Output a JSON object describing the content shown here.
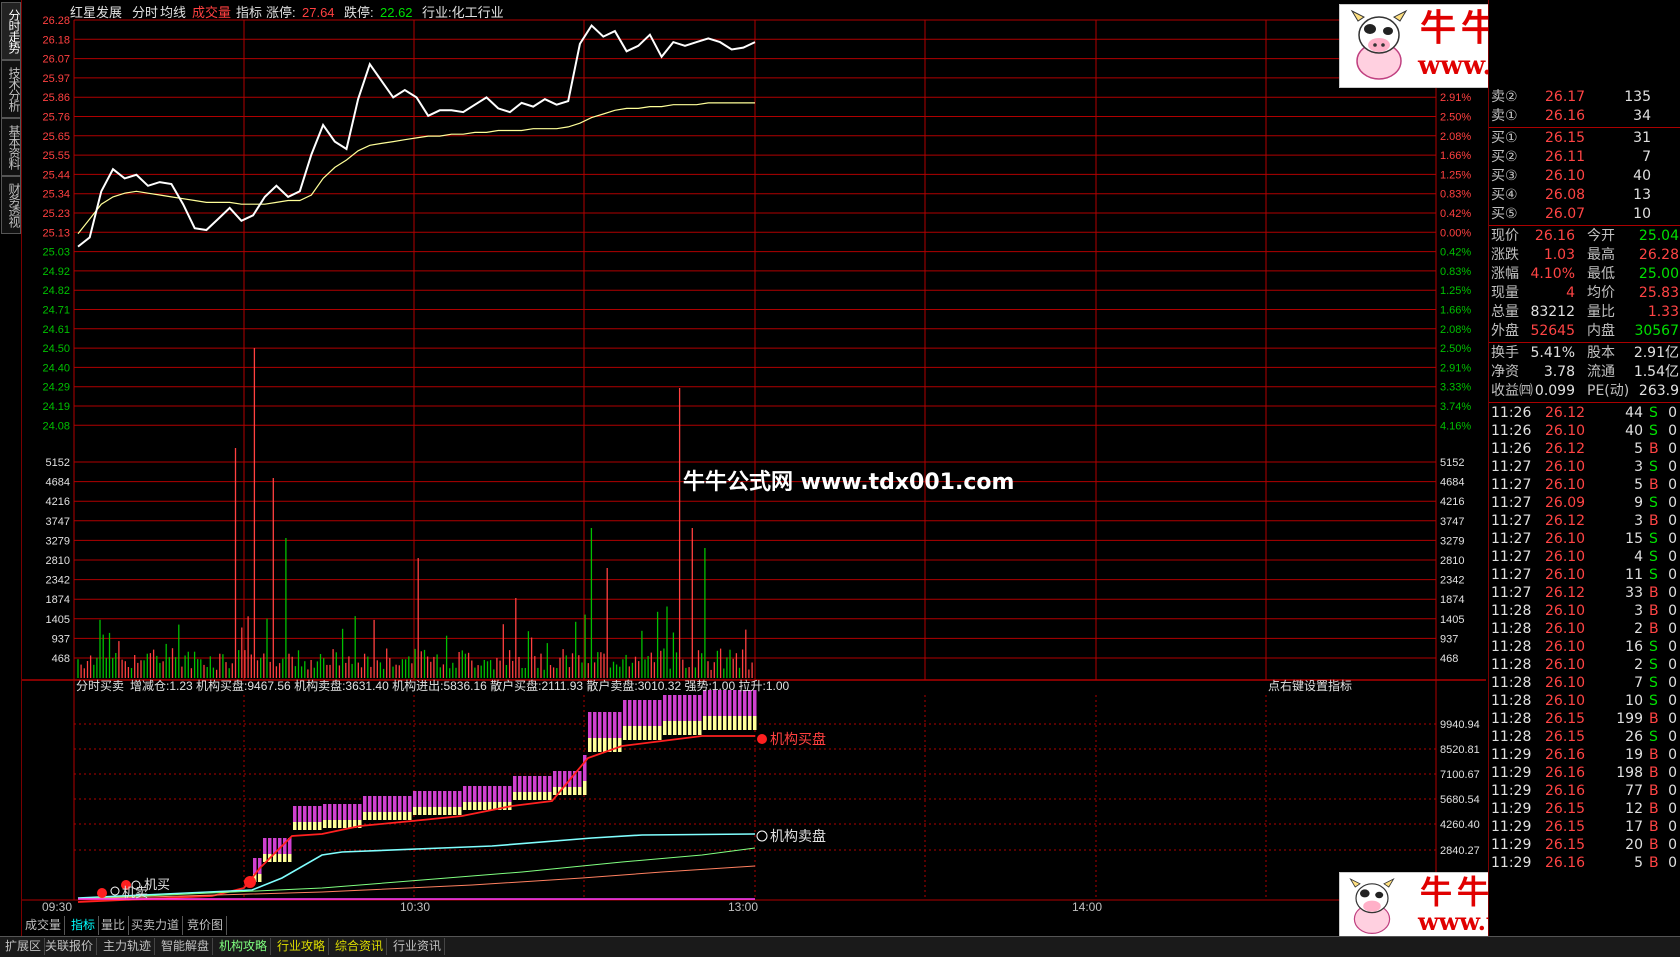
{
  "side_tabs": [
    "分时走势",
    "技术分析",
    "基本资料",
    "财务透视"
  ],
  "header": {
    "stock_name": "红星发展",
    "items": [
      "分时",
      "均线",
      "成交量",
      "指标"
    ],
    "limit_up_label": "涨停:",
    "limit_up": "27.64",
    "limit_down_label": "跌停:",
    "limit_down": "22.62",
    "industry": "行业:化工行业"
  },
  "price_axis": {
    "left": [
      "26.28",
      "26.18",
      "26.07",
      "25.97",
      "25.86",
      "25.76",
      "25.65",
      "25.55",
      "25.44",
      "25.34",
      "25.23",
      "25.13",
      "25.03",
      "24.92",
      "24.82",
      "24.71",
      "24.61",
      "24.50",
      "24.40",
      "24.29",
      "24.19",
      "24.08"
    ],
    "right": [
      "",
      "",
      "",
      "",
      "2.91%",
      "2.50%",
      "2.08%",
      "1.66%",
      "1.25%",
      "0.83%",
      "0.42%",
      "0.00%",
      "0.42%",
      "0.83%",
      "1.25%",
      "1.66%",
      "2.08%",
      "2.50%",
      "2.91%",
      "3.33%",
      "3.74%",
      "4.16%"
    ]
  },
  "volume_axis": [
    "5152",
    "4684",
    "4216",
    "3747",
    "3279",
    "2810",
    "2342",
    "1874",
    "1405",
    "937",
    "468"
  ],
  "indicator": {
    "name": "分时买卖",
    "values": "增减仓:1.23  机构买盘:9467.56  机构卖盘:3631.40  机构进出:5836.16  散户买盘:2111.93  散户卖盘:3010.32  强势:1.00  拉升:1.00",
    "hint": "点右键设置指标",
    "buy_label": "机构买盘",
    "sell_label": "机构卖盘",
    "start_label_1": "机卖",
    "start_label_2": "机买",
    "axis": [
      "9940.94",
      "8520.81",
      "7100.67",
      "5680.54",
      "4260.40",
      "2840.27"
    ]
  },
  "time_axis": [
    "09:30",
    "10:30",
    "13:00",
    "14:00"
  ],
  "price_series": [
    25.05,
    25.1,
    25.35,
    25.47,
    25.42,
    25.44,
    25.38,
    25.4,
    25.39,
    25.28,
    25.15,
    25.14,
    25.2,
    25.26,
    25.19,
    25.22,
    25.32,
    25.38,
    25.32,
    25.35,
    25.55,
    25.71,
    25.62,
    25.58,
    25.85,
    26.04,
    25.95,
    25.86,
    25.9,
    25.86,
    25.76,
    25.79,
    25.79,
    25.78,
    25.82,
    25.86,
    25.8,
    25.78,
    25.83,
    25.81,
    25.85,
    25.82,
    25.84,
    26.15,
    26.25,
    26.19,
    26.22,
    26.11,
    26.14,
    26.2,
    26.08,
    26.16,
    26.14,
    26.16,
    26.18,
    26.16,
    26.12,
    26.13,
    26.16
  ],
  "avg_series": [
    25.12,
    25.2,
    25.28,
    25.32,
    25.34,
    25.35,
    25.34,
    25.33,
    25.32,
    25.31,
    25.3,
    25.29,
    25.29,
    25.29,
    25.28,
    25.28,
    25.28,
    25.29,
    25.3,
    25.3,
    25.33,
    25.42,
    25.48,
    25.52,
    25.57,
    25.6,
    25.61,
    25.62,
    25.63,
    25.64,
    25.65,
    25.65,
    25.66,
    25.66,
    25.67,
    25.67,
    25.68,
    25.68,
    25.68,
    25.69,
    25.69,
    25.69,
    25.7,
    25.72,
    25.75,
    25.77,
    25.79,
    25.8,
    25.8,
    25.81,
    25.81,
    25.82,
    25.82,
    25.82,
    25.83,
    25.83,
    25.83,
    25.83,
    25.83
  ],
  "order_book": {
    "sell": [
      {
        "label": "卖②",
        "price": "26.17",
        "vol": "135"
      },
      {
        "label": "卖①",
        "price": "26.16",
        "vol": "34"
      }
    ],
    "buy": [
      {
        "label": "买①",
        "price": "26.15",
        "vol": "31"
      },
      {
        "label": "买②",
        "price": "26.11",
        "vol": "7"
      },
      {
        "label": "买③",
        "price": "26.10",
        "vol": "40"
      },
      {
        "label": "买④",
        "price": "26.08",
        "vol": "13"
      },
      {
        "label": "买⑤",
        "price": "26.07",
        "vol": "10"
      }
    ]
  },
  "quote": [
    {
      "l1": "现价",
      "v1": "26.16",
      "c1": "red",
      "l2": "今开",
      "v2": "25.04",
      "c2": "green"
    },
    {
      "l1": "涨跌",
      "v1": "1.03",
      "c1": "red",
      "l2": "最高",
      "v2": "26.28",
      "c2": "red"
    },
    {
      "l1": "涨幅",
      "v1": "4.10%",
      "c1": "red",
      "l2": "最低",
      "v2": "25.00",
      "c2": "green"
    },
    {
      "l1": "现量",
      "v1": "4",
      "c1": "red",
      "l2": "均价",
      "v2": "25.83",
      "c2": "red"
    },
    {
      "l1": "总量",
      "v1": "83212",
      "c1": "white",
      "l2": "量比",
      "v2": "1.33",
      "c2": "red"
    },
    {
      "l1": "外盘",
      "v1": "52645",
      "c1": "red",
      "l2": "内盘",
      "v2": "30567",
      "c2": "green"
    }
  ],
  "fundamentals": [
    {
      "l1": "换手",
      "v1": "5.41%",
      "l2": "股本",
      "v2": "2.91亿"
    },
    {
      "l1": "净资",
      "v1": "3.78",
      "l2": "流通",
      "v2": "1.54亿"
    },
    {
      "l1": "收益㈣",
      "v1": "0.099",
      "l2": "PE(动)",
      "v2": "263.9"
    }
  ],
  "ticks": [
    {
      "t": "11:26",
      "p": "26.12",
      "v": "44",
      "s": "S",
      "n": "0"
    },
    {
      "t": "11:26",
      "p": "26.10",
      "v": "40",
      "s": "S",
      "n": "0"
    },
    {
      "t": "11:26",
      "p": "26.12",
      "v": "5",
      "s": "B",
      "n": "0"
    },
    {
      "t": "11:27",
      "p": "26.10",
      "v": "3",
      "s": "S",
      "n": "0"
    },
    {
      "t": "11:27",
      "p": "26.10",
      "v": "5",
      "s": "B",
      "n": "0"
    },
    {
      "t": "11:27",
      "p": "26.09",
      "v": "9",
      "s": "S",
      "n": "0"
    },
    {
      "t": "11:27",
      "p": "26.12",
      "v": "3",
      "s": "B",
      "n": "0"
    },
    {
      "t": "11:27",
      "p": "26.10",
      "v": "15",
      "s": "S",
      "n": "0"
    },
    {
      "t": "11:27",
      "p": "26.10",
      "v": "4",
      "s": "S",
      "n": "0"
    },
    {
      "t": "11:27",
      "p": "26.10",
      "v": "11",
      "s": "S",
      "n": "0"
    },
    {
      "t": "11:27",
      "p": "26.12",
      "v": "33",
      "s": "B",
      "n": "0"
    },
    {
      "t": "11:28",
      "p": "26.10",
      "v": "3",
      "s": "B",
      "n": "0"
    },
    {
      "t": "11:28",
      "p": "26.10",
      "v": "2",
      "s": "B",
      "n": "0"
    },
    {
      "t": "11:28",
      "p": "26.10",
      "v": "16",
      "s": "S",
      "n": "0"
    },
    {
      "t": "11:28",
      "p": "26.10",
      "v": "2",
      "s": "S",
      "n": "0"
    },
    {
      "t": "11:28",
      "p": "26.10",
      "v": "7",
      "s": "S",
      "n": "0"
    },
    {
      "t": "11:28",
      "p": "26.10",
      "v": "10",
      "s": "S",
      "n": "0"
    },
    {
      "t": "11:28",
      "p": "26.15",
      "v": "199",
      "s": "B",
      "n": "0"
    },
    {
      "t": "11:28",
      "p": "26.15",
      "v": "26",
      "s": "S",
      "n": "0"
    },
    {
      "t": "11:29",
      "p": "26.16",
      "v": "19",
      "s": "B",
      "n": "0"
    },
    {
      "t": "11:29",
      "p": "26.16",
      "v": "198",
      "s": "B",
      "n": "0"
    },
    {
      "t": "11:29",
      "p": "26.16",
      "v": "77",
      "s": "B",
      "n": "0"
    },
    {
      "t": "11:29",
      "p": "26.15",
      "v": "12",
      "s": "B",
      "n": "0"
    },
    {
      "t": "11:29",
      "p": "26.15",
      "v": "17",
      "s": "B",
      "n": "0"
    },
    {
      "t": "11:29",
      "p": "26.15",
      "v": "20",
      "s": "B",
      "n": "0"
    },
    {
      "t": "11:29",
      "p": "26.16",
      "v": "5",
      "s": "B",
      "n": "0"
    }
  ],
  "bottom_tabs": [
    "成交量",
    "指标",
    "量比",
    "买卖力道",
    "竞价图"
  ],
  "status_tabs": [
    {
      "label": "扩展区",
      "c": ""
    },
    {
      "label": "关联报价",
      "c": ""
    },
    {
      "label": "主力轨迹",
      "c": ""
    },
    {
      "label": "智能解盘",
      "c": ""
    },
    {
      "label": "机构攻略",
      "c": "green"
    },
    {
      "label": "行业攻略",
      "c": "yellow"
    },
    {
      "label": "综合资讯",
      "c": "yellow"
    },
    {
      "label": "行业资讯",
      "c": ""
    }
  ],
  "watermark": "牛牛公式网 www.tdx001.com",
  "logo": {
    "cn": "牛牛公式网",
    "url": "www.tdx001.com"
  },
  "colors": {
    "grid": "#b00000",
    "up": "#ff4040",
    "down": "#00c000",
    "price_line": "#ffffff",
    "avg_line": "#ffff99",
    "buy_line": "#ff2020",
    "sell_line": "#80ffff",
    "bar_magenta": "#d040d0",
    "bar_yellow": "#ffff99"
  }
}
